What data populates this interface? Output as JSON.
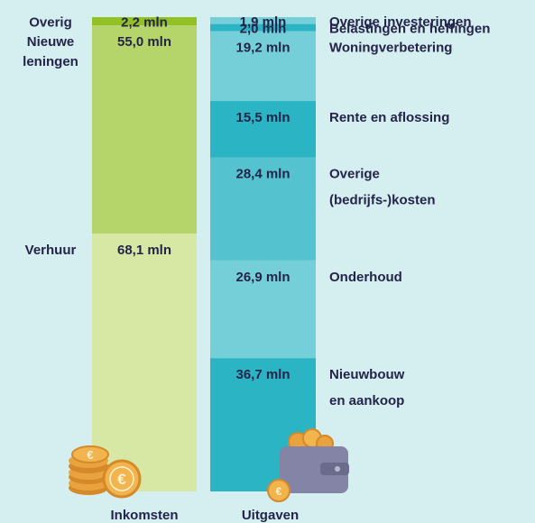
{
  "chart_data": {
    "type": "bar",
    "subtype": "stacked-columns",
    "unit": "mln",
    "columns": [
      {
        "name": "Inkomsten",
        "segments": [
          {
            "label": [
              "Overig"
            ],
            "value": 2.2,
            "value_text": "2,2 mln",
            "color": "#93c024"
          },
          {
            "label": [
              "Nieuwe",
              "leningen"
            ],
            "value": 55.0,
            "value_text": "55,0 mln",
            "color": "#b5d56a"
          },
          {
            "label": [
              "Verhuur"
            ],
            "value": 68.1,
            "value_text": "68,1 mln",
            "color": "#d6e8a3"
          }
        ]
      },
      {
        "name": "Uitgaven",
        "segments": [
          {
            "label": [
              "Overige investeringen"
            ],
            "value": 1.9,
            "value_text": "1,9 mln",
            "color": "#75cfd9"
          },
          {
            "label": [
              "Belastingen en heffingen"
            ],
            "value": 2.0,
            "value_text": "2,0 mln",
            "color": "#2bb4c4"
          },
          {
            "label": [
              "Woningverbetering"
            ],
            "value": 19.2,
            "value_text": "19,2 mln",
            "color": "#75cfd9"
          },
          {
            "label": [
              "Rente en aflossing"
            ],
            "value": 15.5,
            "value_text": "15,5 mln",
            "color": "#2bb4c4"
          },
          {
            "label": [
              "Overige",
              "(bedrijfs-)kosten"
            ],
            "value": 28.4,
            "value_text": "28,4 mln",
            "color": "#54c2cf"
          },
          {
            "label": [
              "Onderhoud"
            ],
            "value": 26.9,
            "value_text": "26,9 mln",
            "color": "#75cfd9"
          },
          {
            "label": [
              "Nieuwbouw",
              "en aankoop"
            ],
            "value": 36.7,
            "value_text": "36,7 mln",
            "color": "#2bb4c4"
          }
        ]
      }
    ]
  },
  "colors": {
    "background": "#d5eef0",
    "text": "#24244a",
    "coin": "#e9a33d",
    "wallet": "#8484a6"
  },
  "icons": [
    "coins-icon",
    "wallet-icon"
  ]
}
